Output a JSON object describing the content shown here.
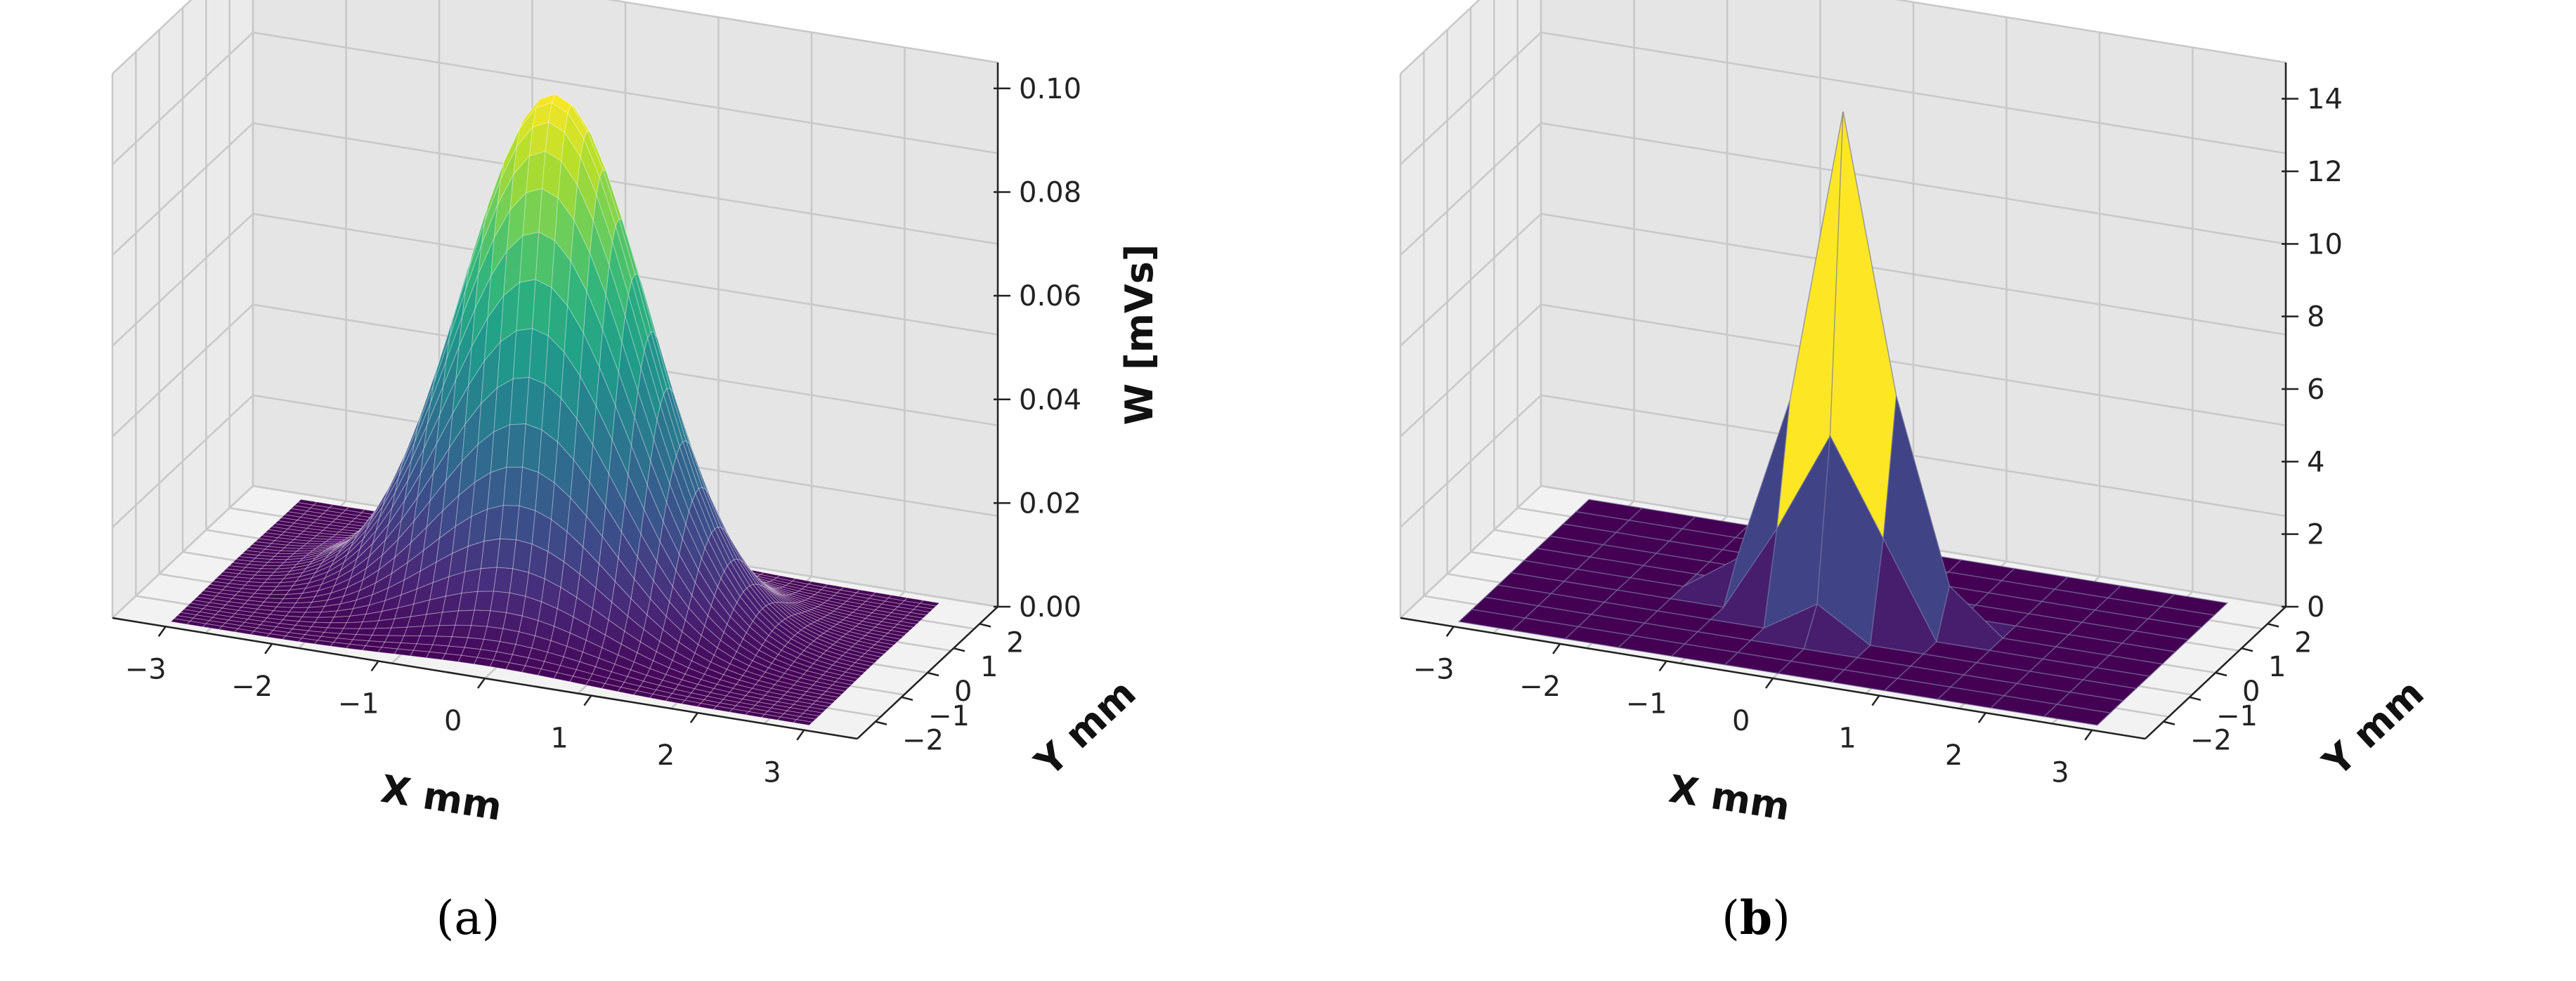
{
  "chart_data": [
    {
      "type": "surface",
      "panel_label": "(a)",
      "caption_open": "(",
      "caption_letter": "a",
      "caption_close": ")",
      "xlabel": "X mm",
      "ylabel": "Y mm",
      "zlabel": "W [mVs]",
      "x_ticks": [
        "−3",
        "−2",
        "−1",
        "0",
        "1",
        "2",
        "3"
      ],
      "y_ticks": [
        "−2",
        "−1",
        "0",
        "1",
        "2"
      ],
      "z_ticks": [
        "0.00",
        "0.02",
        "0.04",
        "0.06",
        "0.08",
        "0.10"
      ],
      "xlim": [
        -3.5,
        3.5
      ],
      "ylim": [
        -2.7,
        2.7
      ],
      "zlim": [
        0,
        0.105
      ],
      "function": "gaussian",
      "peak_value": 0.1,
      "peak_x": 0,
      "peak_y": 0,
      "sigma_mm": 0.85,
      "grid_points": 40,
      "colormap": "viridis",
      "grid": true
    },
    {
      "type": "surface",
      "panel_label": "(b)",
      "caption_open": "(",
      "caption_letter": "b",
      "caption_close": ")",
      "xlabel": "X mm",
      "ylabel": "Y mm",
      "zlabel": "",
      "x_ticks": [
        "−3",
        "−2",
        "−1",
        "0",
        "1",
        "2",
        "3"
      ],
      "y_ticks": [
        "−2",
        "−1",
        "0",
        "1",
        "2"
      ],
      "z_ticks": [
        "0",
        "2",
        "4",
        "6",
        "8",
        "10",
        "12",
        "14"
      ],
      "xlim": [
        -3.5,
        3.5
      ],
      "ylim": [
        -2.7,
        2.7
      ],
      "zlim": [
        0,
        15
      ],
      "function": "coarse-grid",
      "grid_x": [
        -3,
        -2.5,
        -2,
        -1.5,
        -1,
        -0.5,
        0,
        0.5,
        1,
        1.5,
        2,
        2.5,
        3
      ],
      "grid_y": [
        -2.5,
        -2,
        -1.5,
        -1,
        -0.5,
        0,
        0.5,
        1,
        1.5,
        2,
        2.5
      ],
      "nonzero_cells": [
        {
          "x": 0,
          "y": 0,
          "z": 13.8
        },
        {
          "x": -0.5,
          "y": 0,
          "z": 5.6
        },
        {
          "x": 0.5,
          "y": 0,
          "z": 6.2
        },
        {
          "x": 0,
          "y": -0.5,
          "z": 5.2
        },
        {
          "x": 0,
          "y": 0.5,
          "z": 6.8
        },
        {
          "x": -0.5,
          "y": -0.5,
          "z": 2.4
        },
        {
          "x": 0.5,
          "y": 0.5,
          "z": 3.0
        },
        {
          "x": -0.5,
          "y": 0.5,
          "z": 2.2
        },
        {
          "x": 0.5,
          "y": -0.5,
          "z": 2.6
        },
        {
          "x": -1,
          "y": 0,
          "z": 1.0
        },
        {
          "x": 1,
          "y": 0,
          "z": 1.2
        },
        {
          "x": 0,
          "y": -1,
          "z": 0.9
        },
        {
          "x": 0,
          "y": 1,
          "z": 1.1
        }
      ],
      "colormap": "viridis",
      "grid": true
    }
  ]
}
